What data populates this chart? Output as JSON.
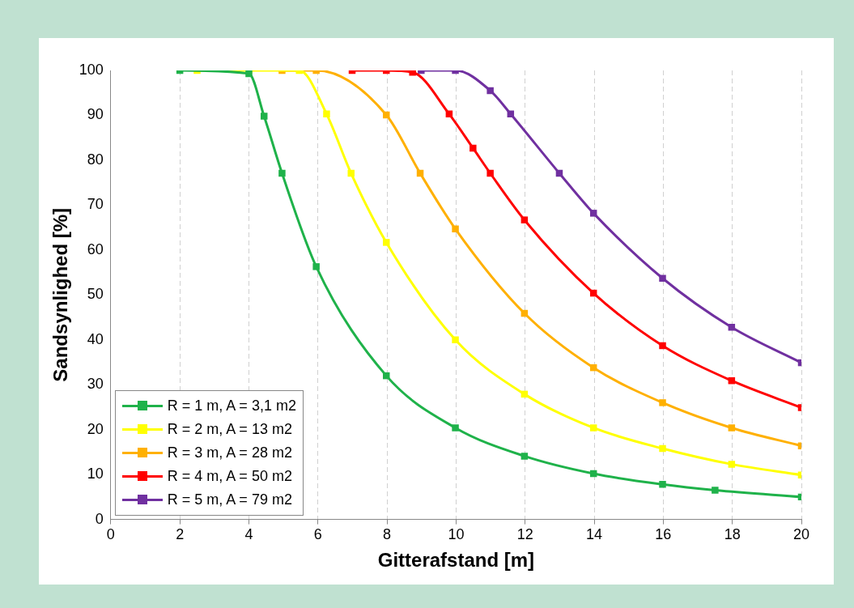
{
  "chart_data": {
    "type": "line",
    "xlabel": "Gitterafstand [m]",
    "ylabel": "Sandsynlighed [%]",
    "xlim": [
      0,
      20
    ],
    "xticks": [
      0,
      2,
      4,
      6,
      8,
      10,
      12,
      14,
      16,
      18,
      20
    ],
    "ylim": [
      0,
      100
    ],
    "yticks": [
      0,
      10,
      20,
      30,
      40,
      50,
      60,
      70,
      80,
      90,
      100
    ],
    "grid": "x",
    "legend": "bottom left",
    "marker": "square",
    "line_style": "solid",
    "series": [
      {
        "name": "R = 1 m, A = 3,1 m2",
        "color": "#1fb24a",
        "x": [
          2,
          4,
          4.44,
          4.96,
          5.95,
          7.98,
          9.98,
          11.98,
          13.98,
          15.98,
          17.5,
          20
        ],
        "values": [
          100,
          99.3,
          89.8,
          77.1,
          56.3,
          32,
          20.4,
          14.1,
          10.2,
          7.8,
          6.5,
          5
        ]
      },
      {
        "name": "R = 2 m, A = 13 m2",
        "color": "#ffff00",
        "x": [
          2.5,
          4,
          5.46,
          6.25,
          6.96,
          7.98,
          9.98,
          11.98,
          13.98,
          15.98,
          17.98,
          20
        ],
        "values": [
          100,
          100,
          100,
          90.3,
          77.1,
          61.7,
          40,
          27.9,
          20.4,
          15.8,
          12.3,
          9.9
        ]
      },
      {
        "name": "R = 3 m, A = 28 m2",
        "color": "#ffb000",
        "x": [
          4.96,
          5.95,
          7.98,
          8.96,
          9.98,
          11.98,
          13.98,
          15.98,
          17.98,
          20
        ],
        "values": [
          100,
          100,
          90.1,
          77.1,
          64.7,
          45.9,
          33.8,
          26,
          20.4,
          16.4
        ]
      },
      {
        "name": "R = 4 m, A = 50 m2",
        "color": "#ff0000",
        "x": [
          6.99,
          7.98,
          8.74,
          9.8,
          10.49,
          10.99,
          11.98,
          13.98,
          15.98,
          17.98,
          20
        ],
        "values": [
          100,
          100,
          99.6,
          90.3,
          82.7,
          77.1,
          66.7,
          50.4,
          38.7,
          30.9,
          24.9
        ]
      },
      {
        "name": "R = 5 m, A = 79 m2",
        "color": "#7030a0",
        "x": [
          8.99,
          9.98,
          10.99,
          11.58,
          12.99,
          13.98,
          15.98,
          17.98,
          20
        ],
        "values": [
          100,
          100,
          95.5,
          90.3,
          77.1,
          68.2,
          53.7,
          42.8,
          34.9
        ]
      }
    ]
  }
}
